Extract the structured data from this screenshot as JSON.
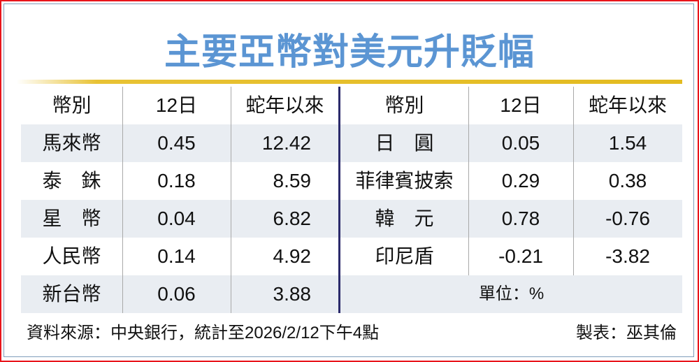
{
  "title": "主要亞幣對美元升貶幅",
  "chart_data": {
    "type": "table",
    "title": "主要亞幣對美元升貶幅",
    "columns": [
      "幣別",
      "12日",
      "蛇年以來"
    ],
    "left_rows": [
      [
        "馬來幣",
        "0.45",
        "12.42"
      ],
      [
        "泰　銖",
        "0.18",
        "8.59"
      ],
      [
        "星　幣",
        "0.04",
        "6.82"
      ],
      [
        "人民幣",
        "0.14",
        "4.92"
      ],
      [
        "新台幣",
        "0.06",
        "3.88"
      ]
    ],
    "right_rows": [
      [
        "日　圓",
        "0.05",
        "1.54"
      ],
      [
        "菲律賓披索",
        "0.29",
        "0.38"
      ],
      [
        "韓　元",
        "0.78",
        "-0.76"
      ],
      [
        "印尼盾",
        "-0.21",
        "-3.82"
      ]
    ],
    "unit": "單位：%"
  },
  "footer": {
    "source": "資料來源：中央銀行，統計至2026/2/12下午4點",
    "credit": "製表：巫其倫"
  },
  "colors": {
    "title": "#5b95d3",
    "border": "#e8141b",
    "gold_rule": "#e3bb20",
    "row_shade": "#e9edf2",
    "divider": "#2b2a6b"
  }
}
